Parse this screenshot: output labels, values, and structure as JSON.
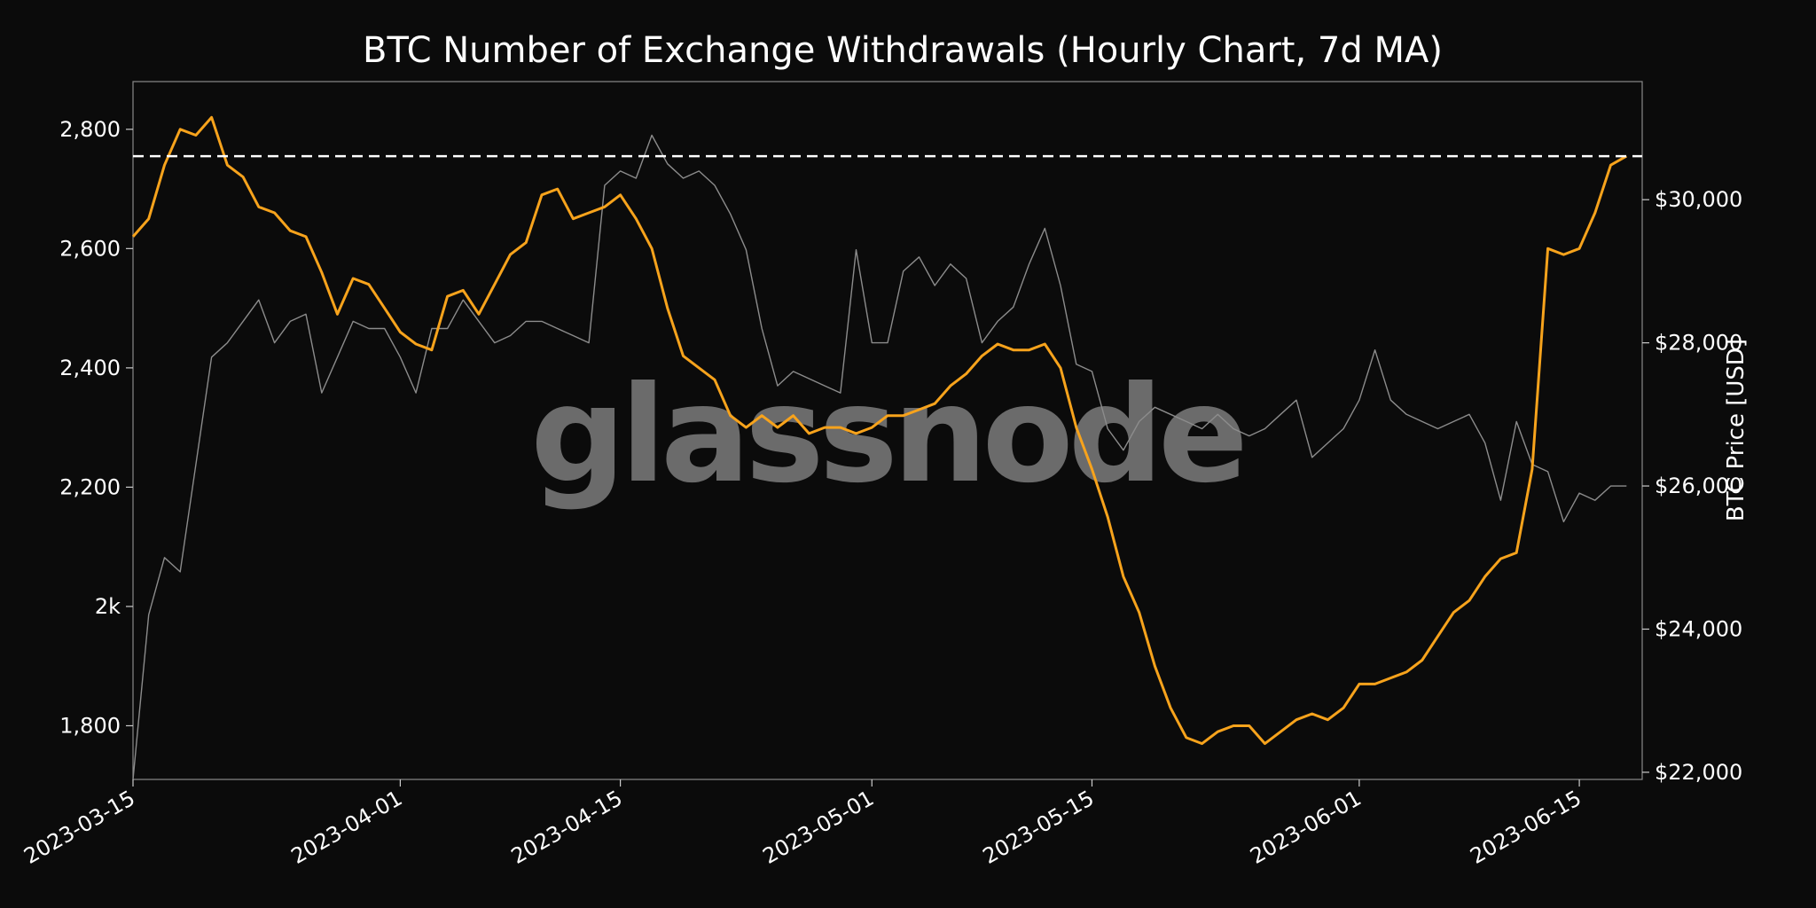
{
  "chart_data": {
    "type": "line",
    "title": "BTC Number of Exchange Withdrawals (Hourly Chart, 7d MA)",
    "xlabel": "",
    "ylabel_left": "",
    "ylabel_right": "BTC Price [USD]",
    "watermark": "glassnode",
    "x_range": [
      "2023-03-15",
      "2023-06-19"
    ],
    "x_ticks": [
      "2023-03-15",
      "2023-04-01",
      "2023-04-15",
      "2023-05-01",
      "2023-05-15",
      "2023-06-01",
      "2023-06-15"
    ],
    "y_left_range": [
      1710,
      2880
    ],
    "y_left_ticks": [
      {
        "value": 1800,
        "label": "1,800"
      },
      {
        "value": 2000,
        "label": "2k"
      },
      {
        "value": 2200,
        "label": "2,200"
      },
      {
        "value": 2400,
        "label": "2,400"
      },
      {
        "value": 2600,
        "label": "2,600"
      },
      {
        "value": 2800,
        "label": "2,800"
      }
    ],
    "y_right_range": [
      21900,
      31650
    ],
    "y_right_ticks": [
      {
        "value": 22000,
        "label": "$22,000"
      },
      {
        "value": 24000,
        "label": "$24,000"
      },
      {
        "value": 26000,
        "label": "$26,000"
      },
      {
        "value": 28000,
        "label": "$28,000"
      },
      {
        "value": 30000,
        "label": "$30,000"
      }
    ],
    "reference_line": {
      "axis": "left",
      "value": 2755,
      "style": "dashed",
      "color": "#ffffff"
    },
    "grid": false,
    "legend": "none",
    "series": [
      {
        "axis": "left",
        "color": "#f7a31c",
        "points": [
          [
            "2023-03-15",
            2620
          ],
          [
            "2023-03-16",
            2650
          ],
          [
            "2023-03-17",
            2740
          ],
          [
            "2023-03-18",
            2800
          ],
          [
            "2023-03-19",
            2790
          ],
          [
            "2023-03-20",
            2820
          ],
          [
            "2023-03-21",
            2740
          ],
          [
            "2023-03-22",
            2720
          ],
          [
            "2023-03-23",
            2670
          ],
          [
            "2023-03-24",
            2660
          ],
          [
            "2023-03-25",
            2630
          ],
          [
            "2023-03-26",
            2620
          ],
          [
            "2023-03-27",
            2560
          ],
          [
            "2023-03-28",
            2490
          ],
          [
            "2023-03-29",
            2550
          ],
          [
            "2023-03-30",
            2540
          ],
          [
            "2023-03-31",
            2500
          ],
          [
            "2023-04-01",
            2460
          ],
          [
            "2023-04-02",
            2440
          ],
          [
            "2023-04-03",
            2430
          ],
          [
            "2023-04-04",
            2520
          ],
          [
            "2023-04-05",
            2530
          ],
          [
            "2023-04-06",
            2490
          ],
          [
            "2023-04-07",
            2540
          ],
          [
            "2023-04-08",
            2590
          ],
          [
            "2023-04-09",
            2610
          ],
          [
            "2023-04-10",
            2690
          ],
          [
            "2023-04-11",
            2700
          ],
          [
            "2023-04-12",
            2650
          ],
          [
            "2023-04-13",
            2660
          ],
          [
            "2023-04-14",
            2670
          ],
          [
            "2023-04-15",
            2690
          ],
          [
            "2023-04-16",
            2650
          ],
          [
            "2023-04-17",
            2600
          ],
          [
            "2023-04-18",
            2500
          ],
          [
            "2023-04-19",
            2420
          ],
          [
            "2023-04-20",
            2400
          ],
          [
            "2023-04-21",
            2380
          ],
          [
            "2023-04-22",
            2320
          ],
          [
            "2023-04-23",
            2300
          ],
          [
            "2023-04-24",
            2320
          ],
          [
            "2023-04-25",
            2300
          ],
          [
            "2023-04-26",
            2320
          ],
          [
            "2023-04-27",
            2290
          ],
          [
            "2023-04-28",
            2300
          ],
          [
            "2023-04-29",
            2300
          ],
          [
            "2023-04-30",
            2290
          ],
          [
            "2023-05-01",
            2300
          ],
          [
            "2023-05-02",
            2320
          ],
          [
            "2023-05-03",
            2320
          ],
          [
            "2023-05-04",
            2330
          ],
          [
            "2023-05-05",
            2340
          ],
          [
            "2023-05-06",
            2370
          ],
          [
            "2023-05-07",
            2390
          ],
          [
            "2023-05-08",
            2420
          ],
          [
            "2023-05-09",
            2440
          ],
          [
            "2023-05-10",
            2430
          ],
          [
            "2023-05-11",
            2430
          ],
          [
            "2023-05-12",
            2440
          ],
          [
            "2023-05-13",
            2400
          ],
          [
            "2023-05-14",
            2300
          ],
          [
            "2023-05-15",
            2230
          ],
          [
            "2023-05-16",
            2150
          ],
          [
            "2023-05-17",
            2050
          ],
          [
            "2023-05-18",
            1990
          ],
          [
            "2023-05-19",
            1900
          ],
          [
            "2023-05-20",
            1830
          ],
          [
            "2023-05-21",
            1780
          ],
          [
            "2023-05-22",
            1770
          ],
          [
            "2023-05-23",
            1790
          ],
          [
            "2023-05-24",
            1800
          ],
          [
            "2023-05-25",
            1800
          ],
          [
            "2023-05-26",
            1770
          ],
          [
            "2023-05-27",
            1790
          ],
          [
            "2023-05-28",
            1810
          ],
          [
            "2023-05-29",
            1820
          ],
          [
            "2023-05-30",
            1810
          ],
          [
            "2023-05-31",
            1830
          ],
          [
            "2023-06-01",
            1870
          ],
          [
            "2023-06-02",
            1870
          ],
          [
            "2023-06-03",
            1880
          ],
          [
            "2023-06-04",
            1890
          ],
          [
            "2023-06-05",
            1910
          ],
          [
            "2023-06-06",
            1950
          ],
          [
            "2023-06-07",
            1990
          ],
          [
            "2023-06-08",
            2010
          ],
          [
            "2023-06-09",
            2050
          ],
          [
            "2023-06-10",
            2080
          ],
          [
            "2023-06-11",
            2090
          ],
          [
            "2023-06-12",
            2230
          ],
          [
            "2023-06-13",
            2600
          ],
          [
            "2023-06-14",
            2590
          ],
          [
            "2023-06-15",
            2600
          ],
          [
            "2023-06-16",
            2660
          ],
          [
            "2023-06-17",
            2740
          ],
          [
            "2023-06-18",
            2755
          ]
        ]
      },
      {
        "axis": "right",
        "color": "#8c8c8c",
        "points": [
          [
            "2023-03-15",
            21900
          ],
          [
            "2023-03-16",
            24200
          ],
          [
            "2023-03-17",
            25000
          ],
          [
            "2023-03-18",
            24800
          ],
          [
            "2023-03-19",
            26300
          ],
          [
            "2023-03-20",
            27800
          ],
          [
            "2023-03-21",
            28000
          ],
          [
            "2023-03-22",
            28300
          ],
          [
            "2023-03-23",
            28600
          ],
          [
            "2023-03-24",
            28000
          ],
          [
            "2023-03-25",
            28300
          ],
          [
            "2023-03-26",
            28400
          ],
          [
            "2023-03-27",
            27300
          ],
          [
            "2023-03-28",
            27800
          ],
          [
            "2023-03-29",
            28300
          ],
          [
            "2023-03-30",
            28200
          ],
          [
            "2023-03-31",
            28200
          ],
          [
            "2023-04-01",
            27800
          ],
          [
            "2023-04-02",
            27300
          ],
          [
            "2023-04-03",
            28200
          ],
          [
            "2023-04-04",
            28200
          ],
          [
            "2023-04-05",
            28600
          ],
          [
            "2023-04-06",
            28300
          ],
          [
            "2023-04-07",
            28000
          ],
          [
            "2023-04-08",
            28100
          ],
          [
            "2023-04-09",
            28300
          ],
          [
            "2023-04-10",
            28300
          ],
          [
            "2023-04-11",
            28200
          ],
          [
            "2023-04-12",
            28100
          ],
          [
            "2023-04-13",
            28000
          ],
          [
            "2023-04-14",
            30200
          ],
          [
            "2023-04-15",
            30400
          ],
          [
            "2023-04-16",
            30300
          ],
          [
            "2023-04-17",
            30900
          ],
          [
            "2023-04-18",
            30500
          ],
          [
            "2023-04-19",
            30300
          ],
          [
            "2023-04-20",
            30400
          ],
          [
            "2023-04-21",
            30200
          ],
          [
            "2023-04-22",
            29800
          ],
          [
            "2023-04-23",
            29300
          ],
          [
            "2023-04-24",
            28200
          ],
          [
            "2023-04-25",
            27400
          ],
          [
            "2023-04-26",
            27600
          ],
          [
            "2023-04-27",
            27500
          ],
          [
            "2023-04-28",
            27400
          ],
          [
            "2023-04-29",
            27300
          ],
          [
            "2023-04-30",
            29300
          ],
          [
            "2023-05-01",
            28000
          ],
          [
            "2023-05-02",
            28000
          ],
          [
            "2023-05-03",
            29000
          ],
          [
            "2023-05-04",
            29200
          ],
          [
            "2023-05-05",
            28800
          ],
          [
            "2023-05-06",
            29100
          ],
          [
            "2023-05-07",
            28900
          ],
          [
            "2023-05-08",
            28000
          ],
          [
            "2023-05-09",
            28300
          ],
          [
            "2023-05-10",
            28500
          ],
          [
            "2023-05-11",
            29100
          ],
          [
            "2023-05-12",
            29600
          ],
          [
            "2023-05-13",
            28800
          ],
          [
            "2023-05-14",
            27700
          ],
          [
            "2023-05-15",
            27600
          ],
          [
            "2023-05-16",
            26800
          ],
          [
            "2023-05-17",
            26500
          ],
          [
            "2023-05-18",
            26900
          ],
          [
            "2023-05-19",
            27100
          ],
          [
            "2023-05-20",
            27000
          ],
          [
            "2023-05-21",
            26900
          ],
          [
            "2023-05-22",
            26800
          ],
          [
            "2023-05-23",
            27000
          ],
          [
            "2023-05-24",
            26800
          ],
          [
            "2023-05-25",
            26700
          ],
          [
            "2023-05-26",
            26800
          ],
          [
            "2023-05-27",
            27000
          ],
          [
            "2023-05-28",
            27200
          ],
          [
            "2023-05-29",
            26400
          ],
          [
            "2023-05-30",
            26600
          ],
          [
            "2023-05-31",
            26800
          ],
          [
            "2023-06-01",
            27200
          ],
          [
            "2023-06-02",
            27900
          ],
          [
            "2023-06-03",
            27200
          ],
          [
            "2023-06-04",
            27000
          ],
          [
            "2023-06-05",
            26900
          ],
          [
            "2023-06-06",
            26800
          ],
          [
            "2023-06-07",
            26900
          ],
          [
            "2023-06-08",
            27000
          ],
          [
            "2023-06-09",
            26600
          ],
          [
            "2023-06-10",
            25800
          ],
          [
            "2023-06-11",
            26900
          ],
          [
            "2023-06-12",
            26300
          ],
          [
            "2023-06-13",
            26200
          ],
          [
            "2023-06-14",
            25500
          ],
          [
            "2023-06-15",
            25900
          ],
          [
            "2023-06-16",
            25800
          ],
          [
            "2023-06-17",
            26000
          ],
          [
            "2023-06-18",
            26000
          ]
        ]
      }
    ]
  }
}
